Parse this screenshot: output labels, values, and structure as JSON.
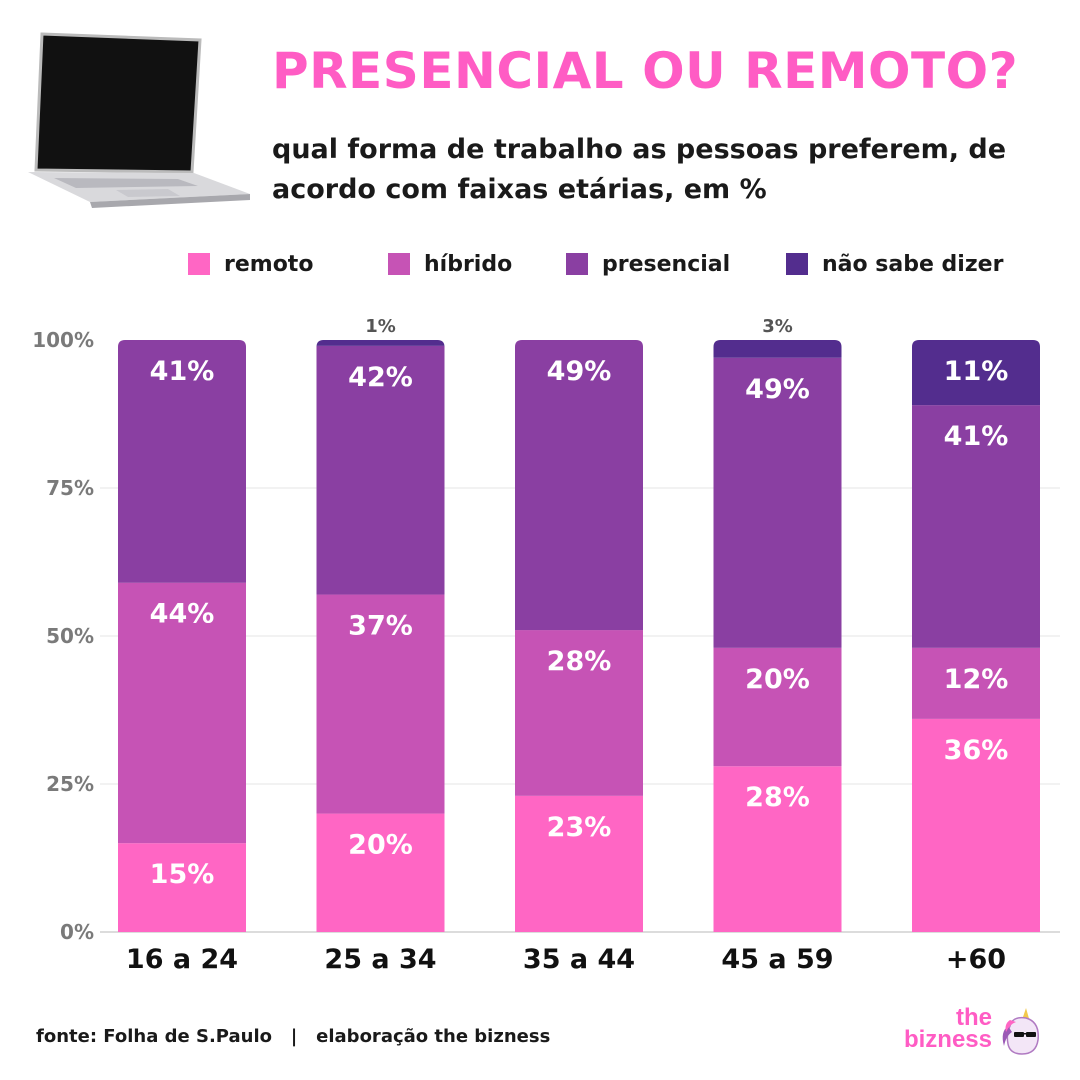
{
  "header": {
    "title": "PRESENCIAL OU REMOTO?",
    "subtitle": "qual forma de trabalho as pessoas preferem, de acordo com faixas etárias, em %"
  },
  "colors": {
    "title": "#ff5cc4",
    "remoto": "#ff66c4",
    "hibrido": "#c653b5",
    "presencial": "#8a3fa2",
    "nao_sabe": "#532d8e",
    "grid": "#e6e6e6",
    "tick_text": "#7a7a7a",
    "label_white": "#ffffff"
  },
  "icons": [
    "laptop-icon",
    "unicorn-icon"
  ],
  "legend": [
    {
      "label": "remoto",
      "color": "#ff66c4"
    },
    {
      "label": "híbrido",
      "color": "#c653b5"
    },
    {
      "label": "presencial",
      "color": "#8a3fa2"
    },
    {
      "label": "não sabe dizer",
      "color": "#532d8e"
    }
  ],
  "chart_data": {
    "type": "bar",
    "stacked": true,
    "categories": [
      "16 a 24",
      "25 a 34",
      "35 a 44",
      "45 a 59",
      "+60"
    ],
    "series": [
      {
        "name": "remoto",
        "values": [
          15,
          20,
          23,
          28,
          36
        ],
        "labels": [
          "15%",
          "20%",
          "23%",
          "28%",
          "36%"
        ]
      },
      {
        "name": "híbrido",
        "values": [
          44,
          37,
          28,
          20,
          12
        ],
        "labels": [
          "44%",
          "37%",
          "28%",
          "20%",
          "12%"
        ]
      },
      {
        "name": "presencial",
        "values": [
          41,
          42,
          49,
          49,
          41
        ],
        "labels": [
          "41%",
          "42%",
          "49%",
          "49%",
          "41%"
        ]
      },
      {
        "name": "não sabe dizer",
        "values": [
          0,
          1,
          0,
          3,
          11
        ],
        "labels": [
          "",
          "1%",
          "",
          "3%",
          "11%"
        ]
      }
    ],
    "yticks": [
      {
        "value": 0,
        "label": "0%"
      },
      {
        "value": 25,
        "label": "25%"
      },
      {
        "value": 50,
        "label": "50%"
      },
      {
        "value": 75,
        "label": "75%"
      },
      {
        "value": 100,
        "label": "100%"
      }
    ],
    "ylim": [
      0,
      100
    ],
    "grid": true,
    "legend_position": "top"
  },
  "footer": {
    "source": "fonte: Folha de S.Paulo   |   elaboração the bizness"
  },
  "logo": {
    "line1": "the",
    "line2": "bizness"
  }
}
